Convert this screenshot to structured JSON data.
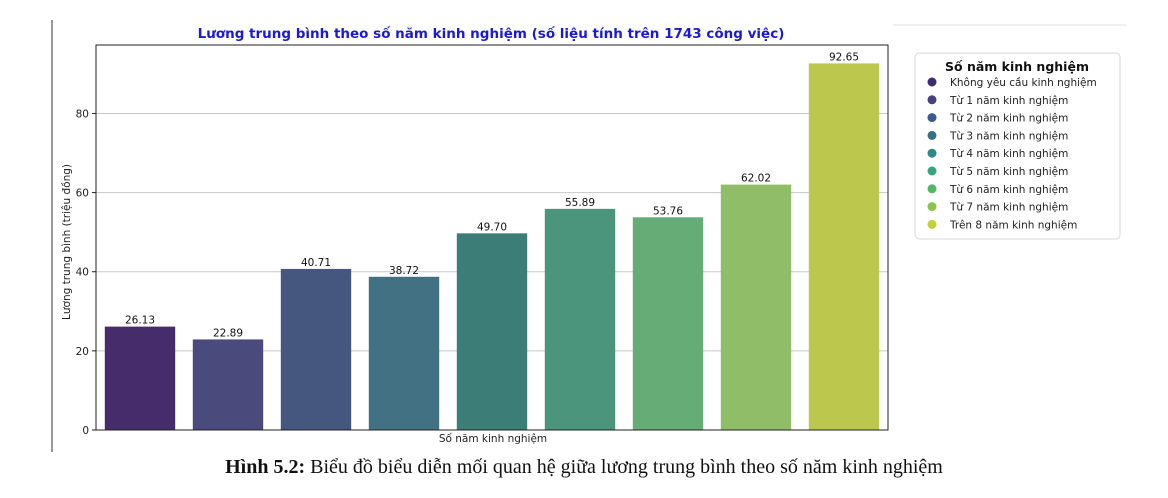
{
  "chart_data": {
    "type": "bar",
    "title": "Lương trung bình theo số năm kinh nghiệm (số liệu tính trên 1743 công việc)",
    "xlabel": "Số năm kinh nghiệm",
    "ylabel": "Lương trung bình (triệu đồng)",
    "ylim": [
      0,
      97.3
    ],
    "yticks": [
      0,
      20,
      40,
      60,
      80
    ],
    "grid": "horizontal",
    "legend_title": "Số năm kinh nghiệm",
    "legend_position": "right",
    "categories": [
      "Không yêu cầu kinh nghiệm",
      "Từ 1 năm kinh nghiệm",
      "Từ 2 năm kinh nghiệm",
      "Từ 3 năm kinh nghiệm",
      "Từ 4 năm kinh nghiệm",
      "Từ 5 năm kinh nghiệm",
      "Từ 6 năm kinh nghiệm",
      "Từ 7 năm kinh nghiệm",
      "Trên 8 năm kinh nghiệm"
    ],
    "values": [
      26.13,
      22.89,
      40.71,
      38.72,
      49.7,
      55.89,
      53.76,
      62.02,
      92.65
    ],
    "value_labels": [
      "26.13",
      "22.89",
      "40.71",
      "38.72",
      "49.70",
      "55.89",
      "53.76",
      "62.02",
      "92.65"
    ],
    "bar_colors": [
      "#472c6b",
      "#4a4a7c",
      "#45577f",
      "#427184",
      "#3c7d78",
      "#4a957c",
      "#66ac76",
      "#8fbd68",
      "#bcc84d"
    ],
    "legend_colors": [
      "#3f2a73",
      "#46407f",
      "#3d5a8c",
      "#386f8a",
      "#2f8a86",
      "#37a57a",
      "#53b864",
      "#8dc450",
      "#c5cf3a"
    ],
    "title_color": "#1a1ad6"
  },
  "caption": {
    "label": "Hình 5.2:",
    "text": " Biểu đồ biểu diễn mối quan hệ giữa lương trung bình theo số năm kinh nghiệm"
  }
}
